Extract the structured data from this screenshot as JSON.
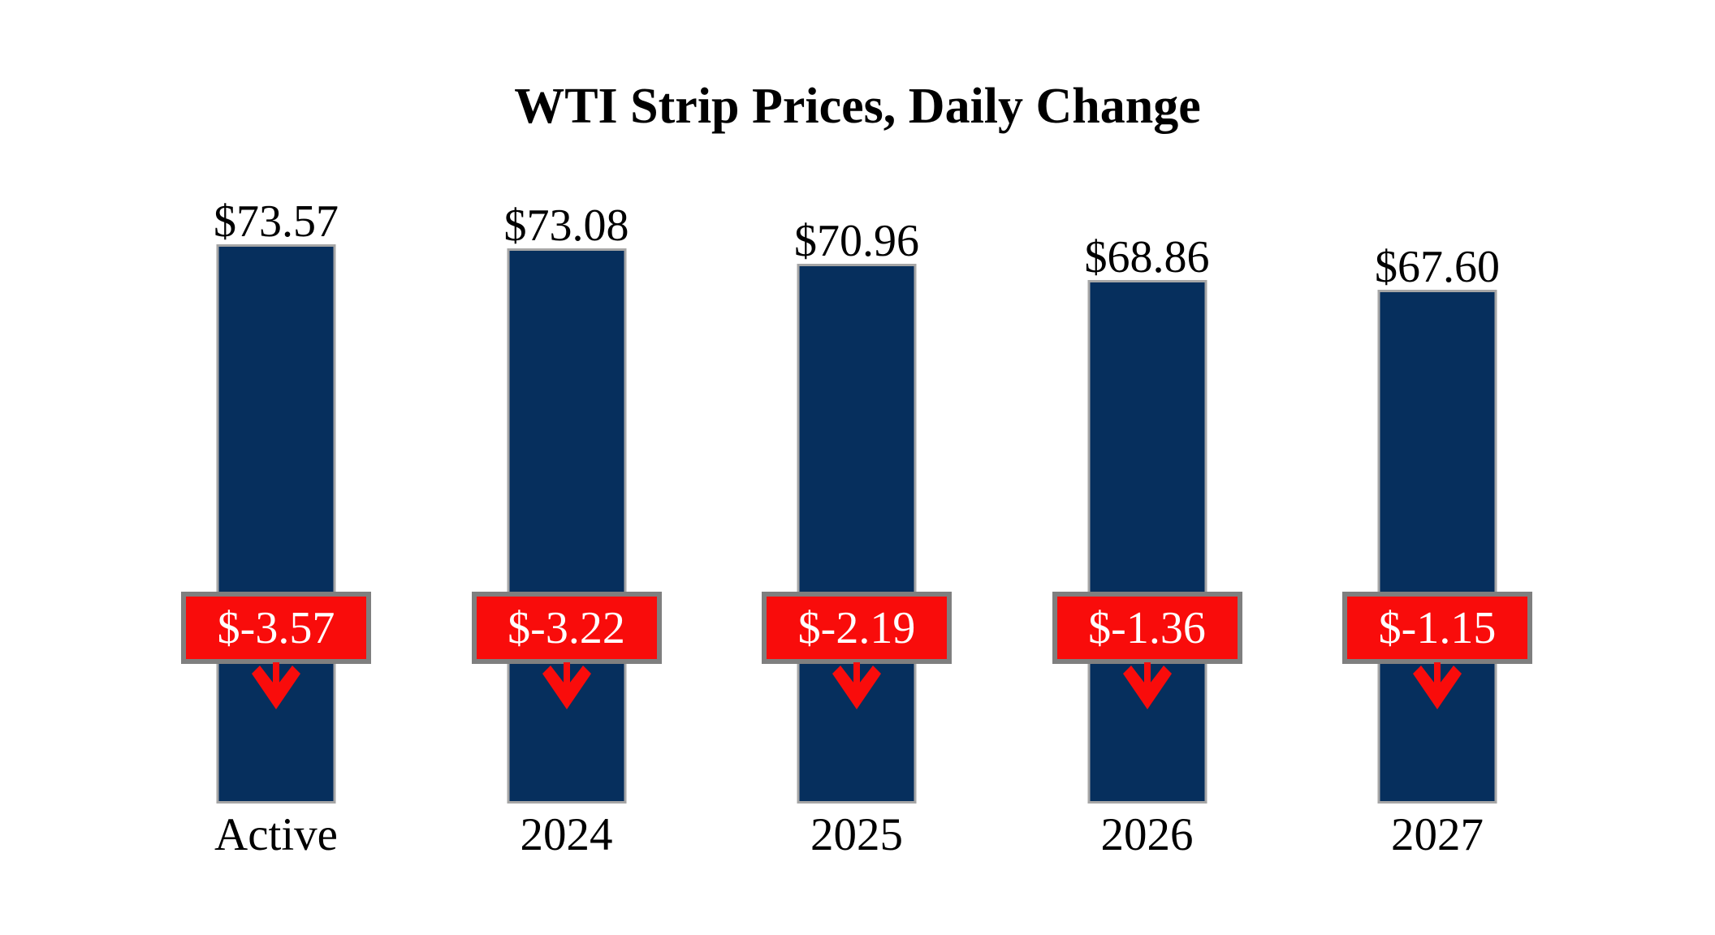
{
  "title": "WTI Strip Prices, Daily Change",
  "colors": {
    "bar": "#062f5d",
    "bar_border": "#a6a6a6",
    "change_fill": "#f90c0b",
    "change_border": "#7f7f7f",
    "change_text": "#ffffff",
    "text": "#000000",
    "background": "#ffffff"
  },
  "chart_data": {
    "type": "bar",
    "title": "WTI Strip Prices, Daily Change",
    "categories": [
      "Active",
      "2024",
      "2025",
      "2026",
      "2027"
    ],
    "series": [
      {
        "name": "price",
        "values": [
          73.57,
          73.08,
          70.96,
          68.86,
          67.6
        ]
      },
      {
        "name": "daily_change",
        "values": [
          -3.57,
          -3.22,
          -2.19,
          -1.36,
          -1.15
        ]
      }
    ],
    "value_labels": [
      "$73.57",
      "$73.08",
      "$70.96",
      "$68.86",
      "$67.60"
    ],
    "change_labels": [
      "$-3.57",
      "$-3.22",
      "$-2.19",
      "$-1.36",
      "$-1.15"
    ],
    "ylim": [
      0,
      78
    ],
    "grid": false,
    "legend": false,
    "axes_visible": false,
    "change_indicator": "down-arrow"
  },
  "columns": [
    {
      "category": "Active",
      "value_label": "$73.57",
      "change_label": "$-3.57"
    },
    {
      "category": "2024",
      "value_label": "$73.08",
      "change_label": "$-3.22"
    },
    {
      "category": "2025",
      "value_label": "$70.96",
      "change_label": "$-2.19"
    },
    {
      "category": "2026",
      "value_label": "$68.86",
      "change_label": "$-1.36"
    },
    {
      "category": "2027",
      "value_label": "$67.60",
      "change_label": "$-1.15"
    }
  ]
}
